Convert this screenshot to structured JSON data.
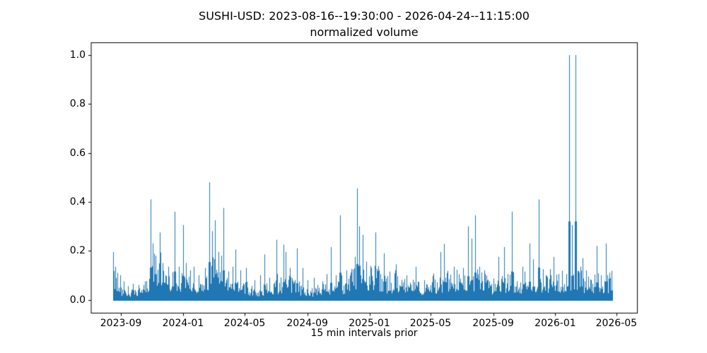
{
  "figure": {
    "background": "#ffffff",
    "text_color": "#000000",
    "axes_color": "#000000"
  },
  "chart_data": {
    "type": "line",
    "title": "SUSHI-USD: 2023-08-16--19:30:00 - 2026-04-24--11:15:00",
    "subtitle": "normalized volume",
    "xlabel": "15 min intervals prior",
    "ylabel": "",
    "series_name": "normalized volume",
    "line_color": "#1f77b4",
    "x_start": "2023-08-16 19:30:00",
    "x_end": "2026-04-24 11:15:00",
    "x_span_days": 982,
    "interval_minutes": 15,
    "ylim": [
      0.0,
      1.0
    ],
    "grid": false,
    "legend": "none",
    "yticks": [
      "0.0",
      "0.2",
      "0.4",
      "0.6",
      "0.8",
      "1.0"
    ],
    "ytick_values": [
      0.0,
      0.2,
      0.4,
      0.6,
      0.8,
      1.0
    ],
    "xticks": [
      {
        "label": "2023-09",
        "day": 16
      },
      {
        "label": "2024-01",
        "day": 138
      },
      {
        "label": "2024-05",
        "day": 259
      },
      {
        "label": "2024-09",
        "day": 382
      },
      {
        "label": "2025-01",
        "day": 504
      },
      {
        "label": "2025-05",
        "day": 624
      },
      {
        "label": "2025-09",
        "day": 747
      },
      {
        "label": "2026-01",
        "day": 869
      },
      {
        "label": "2026-05",
        "day": 989
      }
    ],
    "peaks_format": [
      "days_since_start",
      "normalized_volume"
    ],
    "peaks": [
      [
        1,
        0.195
      ],
      [
        5,
        0.135
      ],
      [
        9,
        0.11
      ],
      [
        15,
        0.1
      ],
      [
        22,
        0.075
      ],
      [
        30,
        0.055
      ],
      [
        40,
        0.065
      ],
      [
        51,
        0.06
      ],
      [
        63,
        0.075
      ],
      [
        74,
        0.41
      ],
      [
        79,
        0.23
      ],
      [
        84,
        0.18
      ],
      [
        92,
        0.275
      ],
      [
        98,
        0.15
      ],
      [
        109,
        0.135
      ],
      [
        122,
        0.36
      ],
      [
        130,
        0.135
      ],
      [
        138,
        0.305
      ],
      [
        144,
        0.15
      ],
      [
        152,
        0.12
      ],
      [
        159,
        0.135
      ],
      [
        169,
        0.1
      ],
      [
        181,
        0.13
      ],
      [
        190,
        0.48
      ],
      [
        195,
        0.28
      ],
      [
        201,
        0.325
      ],
      [
        208,
        0.195
      ],
      [
        213,
        0.18
      ],
      [
        217,
        0.375
      ],
      [
        227,
        0.115
      ],
      [
        235,
        0.135
      ],
      [
        241,
        0.205
      ],
      [
        251,
        0.12
      ],
      [
        262,
        0.13
      ],
      [
        279,
        0.08
      ],
      [
        290,
        0.1
      ],
      [
        298,
        0.185
      ],
      [
        308,
        0.09
      ],
      [
        322,
        0.245
      ],
      [
        335,
        0.225
      ],
      [
        340,
        0.195
      ],
      [
        348,
        0.13
      ],
      [
        361,
        0.21
      ],
      [
        373,
        0.13
      ],
      [
        383,
        0.08
      ],
      [
        395,
        0.09
      ],
      [
        402,
        0.06
      ],
      [
        412,
        0.075
      ],
      [
        420,
        0.105
      ],
      [
        429,
        0.215
      ],
      [
        438,
        0.1
      ],
      [
        447,
        0.345
      ],
      [
        459,
        0.12
      ],
      [
        468,
        0.125
      ],
      [
        480,
        0.455
      ],
      [
        484,
        0.3
      ],
      [
        491,
        0.265
      ],
      [
        498,
        0.155
      ],
      [
        508,
        0.13
      ],
      [
        516,
        0.275
      ],
      [
        525,
        0.105
      ],
      [
        533,
        0.19
      ],
      [
        543,
        0.115
      ],
      [
        556,
        0.145
      ],
      [
        577,
        0.1
      ],
      [
        595,
        0.135
      ],
      [
        612,
        0.08
      ],
      [
        630,
        0.107
      ],
      [
        644,
        0.195
      ],
      [
        651,
        0.228
      ],
      [
        670,
        0.135
      ],
      [
        688,
        0.13
      ],
      [
        698,
        0.3
      ],
      [
        705,
        0.25
      ],
      [
        712,
        0.345
      ],
      [
        720,
        0.135
      ],
      [
        729,
        0.12
      ],
      [
        740,
        0.075
      ],
      [
        750,
        0.065
      ],
      [
        758,
        0.175
      ],
      [
        768,
        0.215
      ],
      [
        776,
        0.105
      ],
      [
        784,
        0.36
      ],
      [
        794,
        0.075
      ],
      [
        804,
        0.135
      ],
      [
        809,
        0.115
      ],
      [
        818,
        0.23
      ],
      [
        825,
        0.165
      ],
      [
        836,
        0.41
      ],
      [
        845,
        0.125
      ],
      [
        852,
        0.095
      ],
      [
        859,
        0.125
      ],
      [
        866,
        0.175
      ],
      [
        876,
        0.105
      ],
      [
        883,
        0.118
      ],
      [
        890,
        0.105
      ],
      [
        896,
        1.0
      ],
      [
        902,
        0.305
      ],
      [
        909,
        1.0
      ],
      [
        918,
        0.135
      ],
      [
        923,
        0.17
      ],
      [
        930,
        0.12
      ],
      [
        939,
        0.08
      ],
      [
        951,
        0.22
      ],
      [
        959,
        0.1
      ],
      [
        968,
        0.23
      ],
      [
        979,
        0.118
      ]
    ],
    "baseline_activity": {
      "seed": 42,
      "points_format": [
        "days_since_start",
        "typical_envelope"
      ],
      "points": [
        [
          0,
          0.075
        ],
        [
          6,
          0.05
        ],
        [
          14,
          0.03
        ],
        [
          25,
          0.022
        ],
        [
          40,
          0.02
        ],
        [
          55,
          0.025
        ],
        [
          66,
          0.04
        ],
        [
          74,
          0.07
        ],
        [
          85,
          0.085
        ],
        [
          95,
          0.09
        ],
        [
          105,
          0.08
        ],
        [
          112,
          0.065
        ],
        [
          120,
          0.055
        ],
        [
          130,
          0.05
        ],
        [
          140,
          0.05
        ],
        [
          150,
          0.045
        ],
        [
          160,
          0.04
        ],
        [
          168,
          0.028
        ],
        [
          178,
          0.04
        ],
        [
          188,
          0.07
        ],
        [
          196,
          0.085
        ],
        [
          205,
          0.08
        ],
        [
          212,
          0.085
        ],
        [
          220,
          0.07
        ],
        [
          228,
          0.05
        ],
        [
          240,
          0.04
        ],
        [
          255,
          0.035
        ],
        [
          270,
          0.028
        ],
        [
          285,
          0.025
        ],
        [
          300,
          0.03
        ],
        [
          312,
          0.04
        ],
        [
          322,
          0.045
        ],
        [
          335,
          0.05
        ],
        [
          348,
          0.045
        ],
        [
          360,
          0.04
        ],
        [
          372,
          0.03
        ],
        [
          385,
          0.025
        ],
        [
          398,
          0.025
        ],
        [
          410,
          0.03
        ],
        [
          420,
          0.035
        ],
        [
          430,
          0.045
        ],
        [
          442,
          0.04
        ],
        [
          455,
          0.045
        ],
        [
          468,
          0.055
        ],
        [
          478,
          0.075
        ],
        [
          488,
          0.07
        ],
        [
          500,
          0.06
        ],
        [
          510,
          0.065
        ],
        [
          518,
          0.07
        ],
        [
          528,
          0.055
        ],
        [
          540,
          0.05
        ],
        [
          552,
          0.05
        ],
        [
          565,
          0.045
        ],
        [
          578,
          0.04
        ],
        [
          590,
          0.038
        ],
        [
          602,
          0.035
        ],
        [
          615,
          0.04
        ],
        [
          628,
          0.045
        ],
        [
          640,
          0.05
        ],
        [
          652,
          0.055
        ],
        [
          665,
          0.06
        ],
        [
          678,
          0.055
        ],
        [
          692,
          0.06
        ],
        [
          705,
          0.06
        ],
        [
          715,
          0.06
        ],
        [
          728,
          0.05
        ],
        [
          740,
          0.04
        ],
        [
          752,
          0.042
        ],
        [
          762,
          0.05
        ],
        [
          772,
          0.052
        ],
        [
          784,
          0.055
        ],
        [
          795,
          0.045
        ],
        [
          806,
          0.05
        ],
        [
          816,
          0.05
        ],
        [
          827,
          0.048
        ],
        [
          838,
          0.042
        ],
        [
          848,
          0.045
        ],
        [
          860,
          0.05
        ],
        [
          872,
          0.052
        ],
        [
          882,
          0.05
        ],
        [
          892,
          0.06
        ],
        [
          902,
          0.065
        ],
        [
          912,
          0.06
        ],
        [
          922,
          0.055
        ],
        [
          932,
          0.045
        ],
        [
          942,
          0.045
        ],
        [
          952,
          0.05
        ],
        [
          962,
          0.048
        ],
        [
          972,
          0.05
        ],
        [
          982,
          0.035
        ]
      ]
    }
  }
}
